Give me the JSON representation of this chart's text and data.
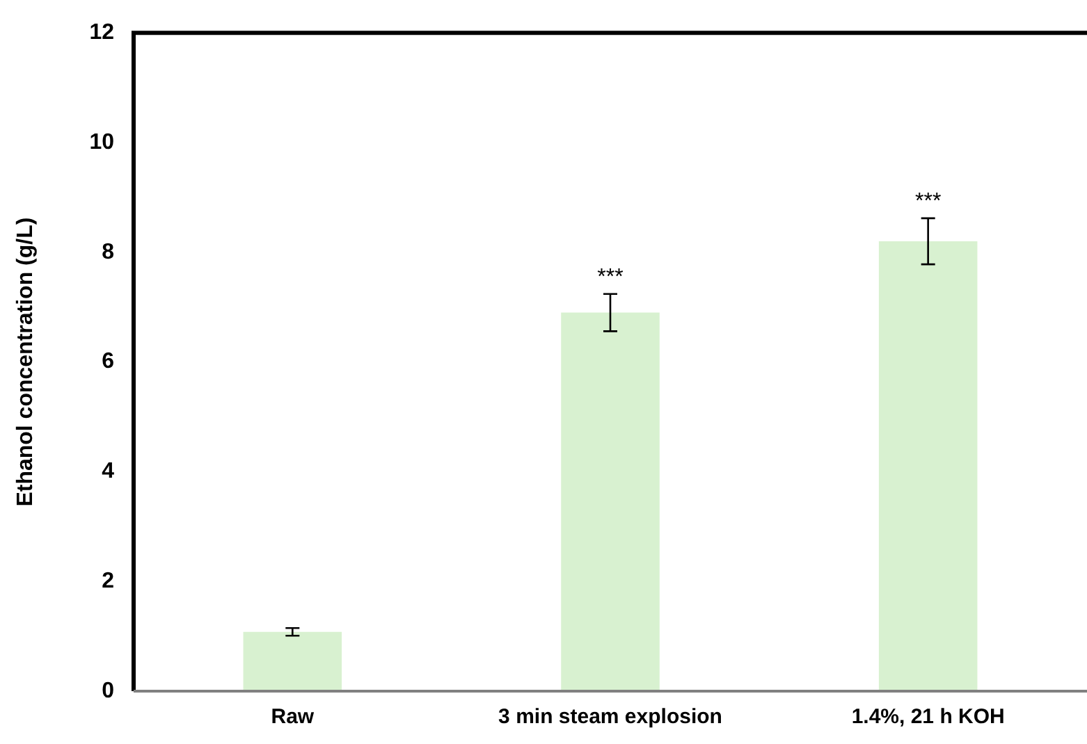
{
  "chart_data": {
    "type": "bar",
    "ylabel": "Ethanol concentration (g/L)",
    "categories": [
      "Raw",
      "3 min steam explosion",
      "1.4%, 21 h KOH"
    ],
    "values": [
      1.08,
      6.9,
      8.2
    ],
    "errors": [
      0.07,
      0.34,
      0.42
    ],
    "color": "#d8f1d0",
    "ylim": [
      0,
      12
    ],
    "yticks": [
      0,
      2,
      4,
      6,
      8,
      10,
      12
    ],
    "grid": false,
    "legend": false,
    "annotations": [
      {
        "text": "***",
        "x": "3 min steam explosion",
        "y": 7.24
      },
      {
        "text": "***",
        "x": "1.4%, 21 h KOH",
        "y": 8.62
      }
    ]
  }
}
